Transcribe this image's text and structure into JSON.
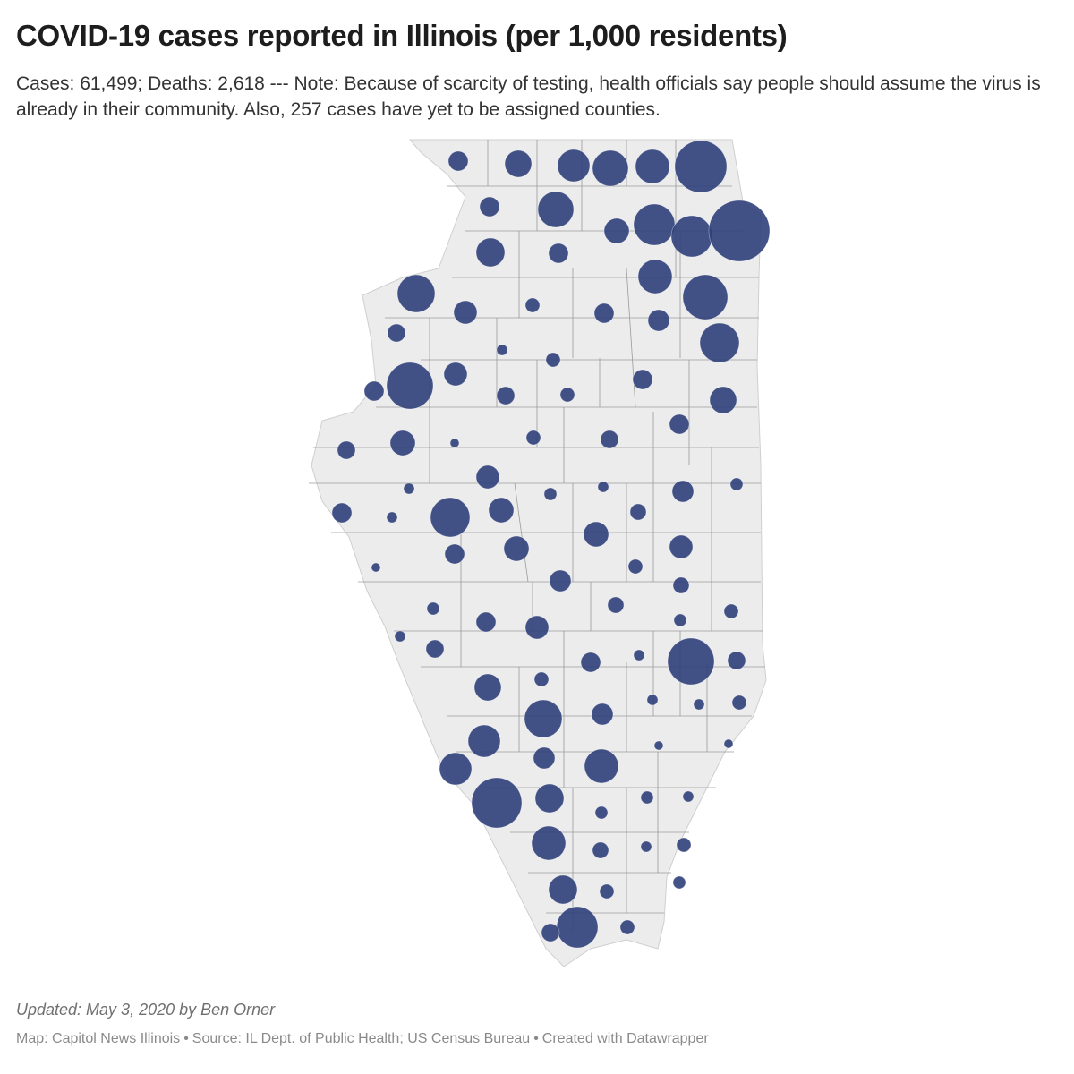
{
  "header": {
    "title": "COVID-19 cases reported in Illinois (per 1,000 residents)",
    "subtitle": "Cases: 61,499; Deaths: 2,618 --- Note: Because of scarcity of testing, health officials say people should assume the virus is already in their community. Also, 257 cases have yet to be assigned counties."
  },
  "map": {
    "region": "Illinois",
    "land_color": "#ececec",
    "border_color": "#9a9a9a",
    "bubble_color": "#2f3f7a"
  },
  "footer": {
    "updated": "Updated: May 3, 2020 by Ben Orner",
    "credit_map": "Map: Capitol News Illinois",
    "credit_source": "Source: IL Dept. of Public Health; US Census Bureau",
    "credit_tool": "Created with Datawrapper",
    "separator": "•"
  }
}
